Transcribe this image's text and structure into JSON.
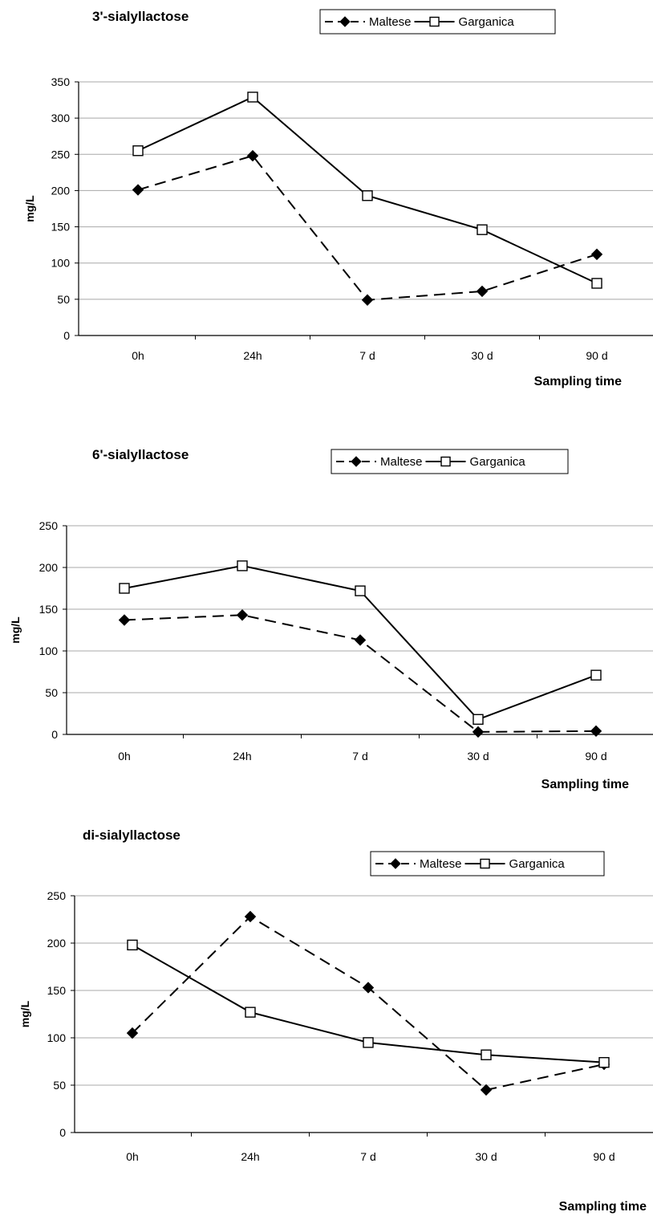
{
  "chart_data": [
    {
      "type": "line",
      "title": "3'-sialyllactose",
      "ylabel": "mg/L",
      "xlabel": "Sampling time",
      "categories": [
        "0h",
        "24h",
        "7 d",
        "30 d",
        "90 d"
      ],
      "ylim": [
        0,
        350
      ],
      "yticks": [
        "0",
        "50",
        "100",
        "150",
        "200",
        "250",
        "300",
        "350"
      ],
      "grid": true,
      "legend": "top",
      "series": [
        {
          "name": "Maltese",
          "values": [
            201,
            248,
            49,
            61,
            112
          ],
          "marker": "filled-diamond",
          "line": "dashed"
        },
        {
          "name": "Garganica",
          "values": [
            255,
            329,
            193,
            146,
            72
          ],
          "marker": "open-square",
          "line": "solid"
        }
      ]
    },
    {
      "type": "line",
      "title": "6'-sialyllactose",
      "ylabel": "mg/L",
      "xlabel": "Sampling time",
      "categories": [
        "0h",
        "24h",
        "7 d",
        "30 d",
        "90 d"
      ],
      "ylim": [
        0,
        250
      ],
      "yticks": [
        "0",
        "50",
        "100",
        "150",
        "200",
        "250"
      ],
      "grid": true,
      "legend": "top",
      "series": [
        {
          "name": "Maltese",
          "values": [
            137,
            143,
            113,
            3,
            4
          ],
          "marker": "filled-diamond",
          "line": "dashed"
        },
        {
          "name": "Garganica",
          "values": [
            175,
            202,
            172,
            18,
            71
          ],
          "marker": "open-square",
          "line": "solid"
        }
      ]
    },
    {
      "type": "line",
      "title": "di-sialyllactose",
      "ylabel": "mg/L",
      "xlabel": "Sampling time",
      "categories": [
        "0h",
        "24h",
        "7 d",
        "30 d",
        "90 d"
      ],
      "ylim": [
        0,
        250
      ],
      "yticks": [
        "0",
        "50",
        "100",
        "150",
        "200",
        "250"
      ],
      "grid": true,
      "legend": "top",
      "series": [
        {
          "name": "Maltese",
          "values": [
            105,
            228,
            153,
            45,
            72
          ],
          "marker": "filled-diamond",
          "line": "dashed"
        },
        {
          "name": "Garganica",
          "values": [
            198,
            127,
            95,
            82,
            74
          ],
          "marker": "open-square",
          "line": "solid"
        }
      ]
    }
  ]
}
